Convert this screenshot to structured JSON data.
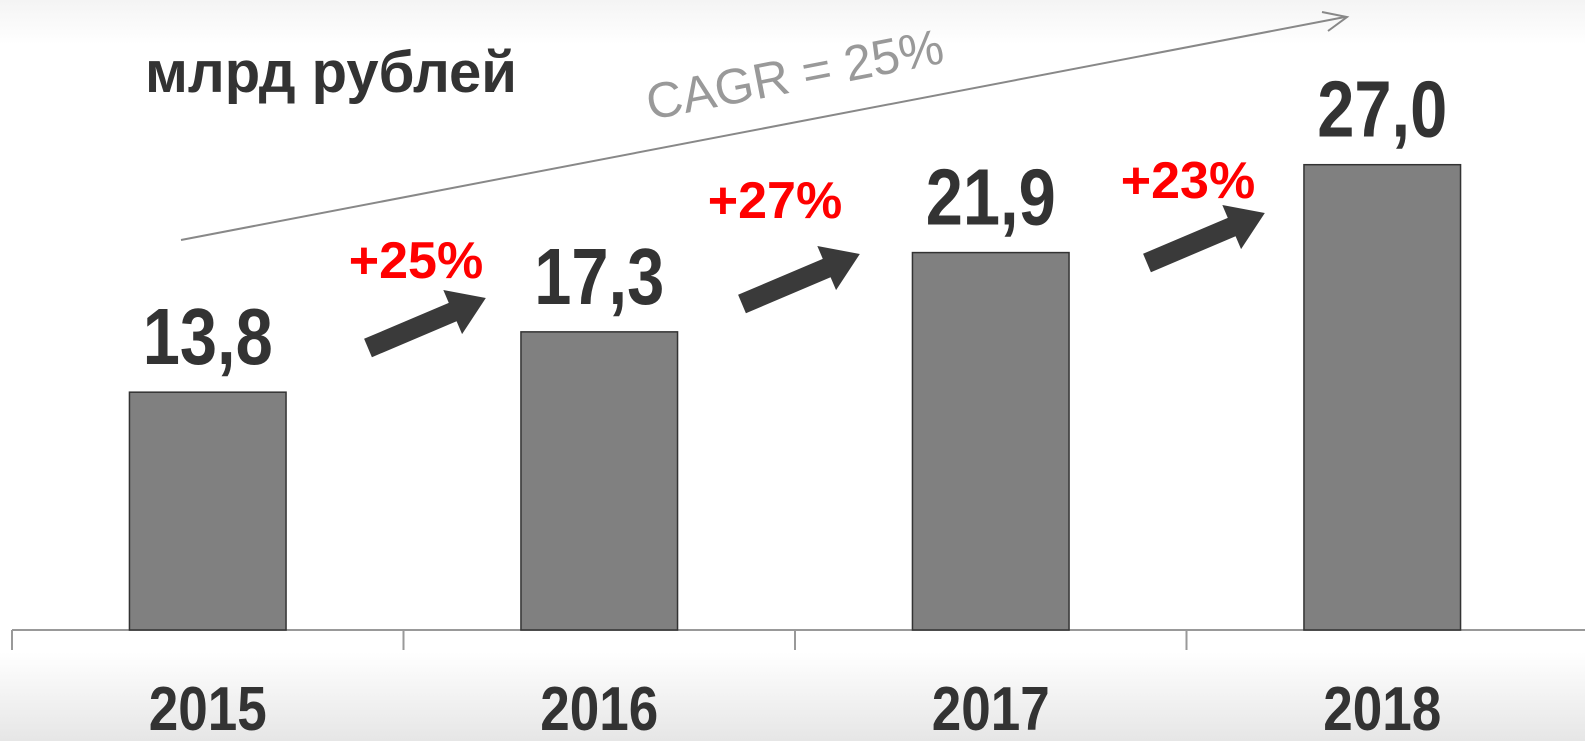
{
  "chart_data": {
    "type": "bar",
    "title": "млрд рублей",
    "categories": [
      "2015",
      "2016",
      "2017",
      "2018"
    ],
    "values": [
      13.8,
      17.3,
      21.9,
      27.0
    ],
    "value_labels": [
      "13,8",
      "17,3",
      "21,9",
      "27,0"
    ],
    "color": "#808080",
    "ylim": [
      0,
      30
    ],
    "annotations": [
      "+25%",
      "+27%",
      "+23%"
    ],
    "cagr_label": "CAGR = 25%"
  }
}
